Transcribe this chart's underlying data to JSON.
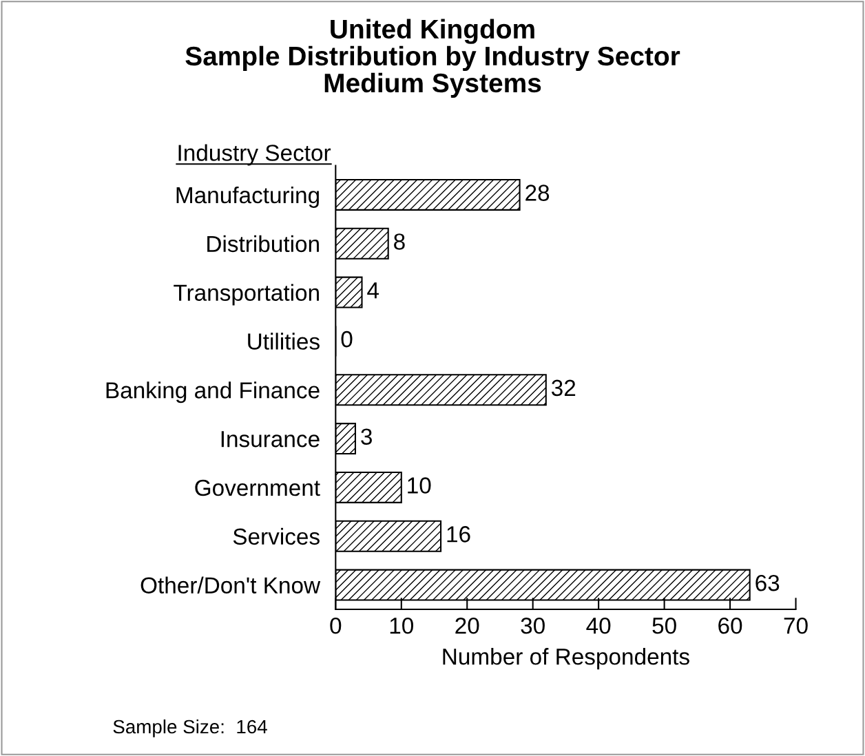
{
  "chart_data": {
    "type": "bar",
    "orientation": "horizontal",
    "title": "United Kingdom\nSample Distribution by Industry Sector\nMedium Systems",
    "ylabel": "Industry Sector",
    "xlabel": "Number of Respondents",
    "categories": [
      "Manufacturing",
      "Distribution",
      "Transportation",
      "Utilities",
      "Banking and Finance",
      "Insurance",
      "Government",
      "Services",
      "Other/Don't Know"
    ],
    "values": [
      28,
      8,
      4,
      0,
      32,
      3,
      10,
      16,
      63
    ],
    "color": "#000000",
    "xlim": [
      0,
      70
    ],
    "xticks": [
      0,
      10,
      20,
      30,
      40,
      50,
      60,
      70
    ],
    "data_labels": true,
    "grid": false,
    "annotations": [
      "Sample Size:  164"
    ]
  }
}
